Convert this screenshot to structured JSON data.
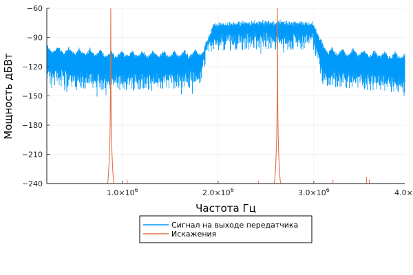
{
  "chart_data": {
    "type": "line",
    "title": "",
    "xlabel": "Частота Гц",
    "ylabel": "Мощность дБВт",
    "xlim": [
      210000,
      3950000
    ],
    "ylim": [
      -240,
      -60
    ],
    "grid": true,
    "legend_position": "bottom-outside",
    "xticks": [
      {
        "value": 1000000,
        "mant": "1.0×10",
        "exp": "6"
      },
      {
        "value": 2000000,
        "mant": "2.0×10",
        "exp": "6"
      },
      {
        "value": 3000000,
        "mant": "3.0×10",
        "exp": "6"
      },
      {
        "value": 4000000,
        "mant": "4.0×10",
        "exp": "6"
      }
    ],
    "yticks": [
      {
        "value": -60,
        "label": "−60"
      },
      {
        "value": -90,
        "label": "−90"
      },
      {
        "value": -120,
        "label": "−120"
      },
      {
        "value": -150,
        "label": "−150"
      },
      {
        "value": -180,
        "label": "−180"
      },
      {
        "value": -210,
        "label": "−210"
      },
      {
        "value": -240,
        "label": "−240"
      }
    ],
    "series": [
      {
        "name": "Сигнал на выходе передатчика",
        "color": "#009AFA",
        "kind": "noisy-spectrum",
        "envelope_top": [
          [
            210000,
            -105
          ],
          [
            900000,
            -110
          ],
          [
            1700000,
            -110
          ],
          [
            1850000,
            -108
          ],
          [
            1950000,
            -78
          ],
          [
            2500000,
            -75
          ],
          [
            3000000,
            -77
          ],
          [
            3080000,
            -100
          ],
          [
            3150000,
            -107
          ],
          [
            3950000,
            -112
          ]
        ],
        "envelope_bottom": [
          [
            210000,
            -140
          ],
          [
            900000,
            -145
          ],
          [
            1800000,
            -142
          ],
          [
            1900000,
            -105
          ],
          [
            2500000,
            -102
          ],
          [
            3000000,
            -104
          ],
          [
            3100000,
            -140
          ],
          [
            3950000,
            -148
          ]
        ],
        "scallop_period_hz": 110000
      },
      {
        "name": "Искажения",
        "color": "#E26F46",
        "kind": "resonance-peaks",
        "floor_db": -240,
        "peaks": [
          {
            "freq": 878000,
            "level_db": -60,
            "visible_range": [
              210000,
              1200000
            ]
          },
          {
            "freq": 2620000,
            "level_db": -60,
            "visible_range": [
              2250000,
              3400000
            ]
          }
        ]
      }
    ]
  }
}
